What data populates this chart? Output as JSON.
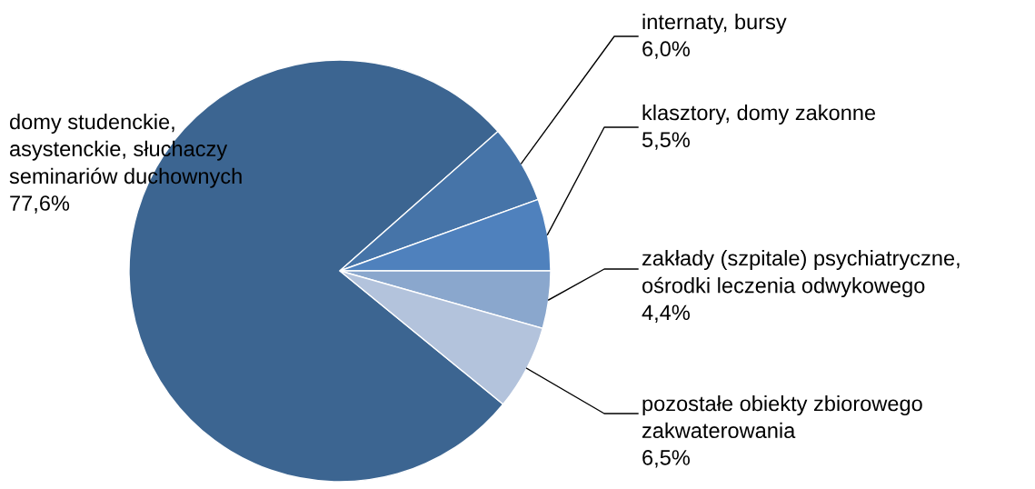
{
  "chart_data": {
    "type": "pie",
    "categories": [
      "domy studenckie,\nasystenckie, słuchaczy\nseminariów duchownych",
      "internaty, bursy",
      "klasztory, domy zakonne",
      "zakłady (szpitale) psychiatryczne,\nośrodki leczenia odwykowego",
      "pozostałe obiekty zbiorowego\nzakwaterowania"
    ],
    "values": [
      77.6,
      6.0,
      5.5,
      4.4,
      6.5
    ],
    "value_labels": [
      "77,6%",
      "6,0%",
      "5,5%",
      "4,4%",
      "6,5%"
    ],
    "colors": [
      "#3c6591",
      "#4674a8",
      "#4f81bd",
      "#8aa7cd",
      "#b3c3dc"
    ],
    "legend": false
  }
}
